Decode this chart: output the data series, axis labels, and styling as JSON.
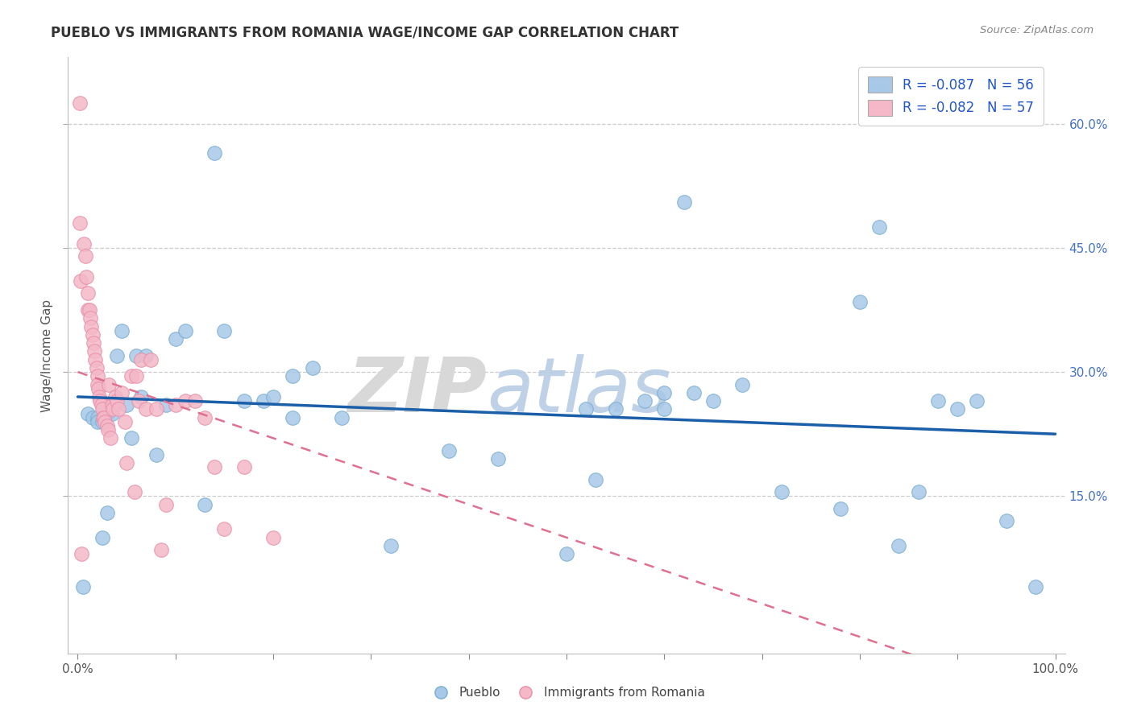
{
  "title": "PUEBLO VS IMMIGRANTS FROM ROMANIA WAGE/INCOME GAP CORRELATION CHART",
  "source": "Source: ZipAtlas.com",
  "ylabel": "Wage/Income Gap",
  "xlim": [
    -0.01,
    1.01
  ],
  "ylim": [
    -0.04,
    0.68
  ],
  "ytick_vals": [
    0.15,
    0.3,
    0.45,
    0.6
  ],
  "legend_blue_label": "R = -0.087   N = 56",
  "legend_pink_label": "R = -0.082   N = 57",
  "legend_bottom_blue": "Pueblo",
  "legend_bottom_pink": "Immigrants from Romania",
  "blue_color": "#a8c8e8",
  "blue_edge": "#7aaed0",
  "pink_color": "#f4b8c8",
  "pink_edge": "#e890a8",
  "line_blue": "#1a5fa8",
  "line_pink": "#e07090",
  "watermark_zip": "ZIP",
  "watermark_atlas": "atlas",
  "blue_x": [
    0.005,
    0.01,
    0.015,
    0.02,
    0.02,
    0.025,
    0.025,
    0.03,
    0.03,
    0.035,
    0.04,
    0.045,
    0.05,
    0.055,
    0.06,
    0.065,
    0.07,
    0.08,
    0.09,
    0.1,
    0.11,
    0.13,
    0.14,
    0.15,
    0.17,
    0.19,
    0.2,
    0.22,
    0.22,
    0.24,
    0.27,
    0.32,
    0.38,
    0.43,
    0.5,
    0.52,
    0.53,
    0.55,
    0.58,
    0.6,
    0.6,
    0.62,
    0.63,
    0.65,
    0.68,
    0.72,
    0.78,
    0.8,
    0.82,
    0.84,
    0.86,
    0.88,
    0.9,
    0.92,
    0.95,
    0.98
  ],
  "blue_y": [
    0.04,
    0.25,
    0.245,
    0.245,
    0.24,
    0.24,
    0.1,
    0.25,
    0.13,
    0.25,
    0.32,
    0.35,
    0.26,
    0.22,
    0.32,
    0.27,
    0.32,
    0.2,
    0.26,
    0.34,
    0.35,
    0.14,
    0.565,
    0.35,
    0.265,
    0.265,
    0.27,
    0.295,
    0.245,
    0.305,
    0.245,
    0.09,
    0.205,
    0.195,
    0.08,
    0.255,
    0.17,
    0.255,
    0.265,
    0.255,
    0.275,
    0.505,
    0.275,
    0.265,
    0.285,
    0.155,
    0.135,
    0.385,
    0.475,
    0.09,
    0.155,
    0.265,
    0.255,
    0.265,
    0.12,
    0.04
  ],
  "pink_x": [
    0.002,
    0.002,
    0.003,
    0.004,
    0.006,
    0.008,
    0.009,
    0.01,
    0.01,
    0.012,
    0.013,
    0.014,
    0.015,
    0.016,
    0.017,
    0.018,
    0.019,
    0.02,
    0.02,
    0.021,
    0.022,
    0.023,
    0.024,
    0.025,
    0.026,
    0.027,
    0.028,
    0.03,
    0.031,
    0.032,
    0.033,
    0.035,
    0.036,
    0.038,
    0.04,
    0.042,
    0.045,
    0.048,
    0.05,
    0.055,
    0.058,
    0.06,
    0.062,
    0.065,
    0.07,
    0.075,
    0.08,
    0.085,
    0.09,
    0.1,
    0.11,
    0.12,
    0.13,
    0.14,
    0.15,
    0.17,
    0.2
  ],
  "pink_y": [
    0.625,
    0.48,
    0.41,
    0.08,
    0.455,
    0.44,
    0.415,
    0.395,
    0.375,
    0.375,
    0.365,
    0.355,
    0.345,
    0.335,
    0.325,
    0.315,
    0.305,
    0.295,
    0.285,
    0.28,
    0.27,
    0.265,
    0.26,
    0.255,
    0.245,
    0.245,
    0.24,
    0.235,
    0.23,
    0.285,
    0.22,
    0.26,
    0.255,
    0.27,
    0.265,
    0.255,
    0.275,
    0.24,
    0.19,
    0.295,
    0.155,
    0.295,
    0.265,
    0.315,
    0.255,
    0.315,
    0.255,
    0.085,
    0.14,
    0.26,
    0.265,
    0.265,
    0.245,
    0.185,
    0.11,
    0.185,
    0.1
  ],
  "blue_trend": [
    0.0,
    1.0,
    0.27,
    0.225
  ],
  "pink_trend": [
    0.0,
    1.0,
    0.3,
    -0.1
  ]
}
